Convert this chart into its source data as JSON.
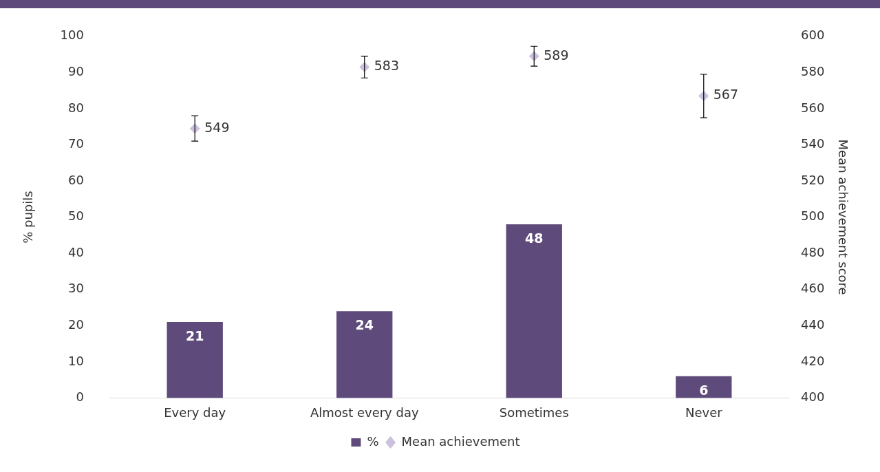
{
  "chart_data": {
    "type": "bar",
    "categories": [
      "Every day",
      "Almost every day",
      "Sometimes",
      "Never"
    ],
    "ylabel": "% pupils",
    "y2label": "Mean achievement score",
    "ylim": [
      0,
      100
    ],
    "yticks": [
      0,
      10,
      20,
      30,
      40,
      50,
      60,
      70,
      80,
      90,
      100
    ],
    "y2lim": [
      400,
      600
    ],
    "y2ticks": [
      400,
      420,
      440,
      460,
      480,
      500,
      520,
      540,
      560,
      580,
      600
    ],
    "series": [
      {
        "name": "%",
        "color": "#5f4b7b",
        "values": [
          21,
          24,
          48,
          6
        ]
      },
      {
        "name": "Mean achievement",
        "type": "scatter",
        "axis": "y2",
        "color": "#cbc0dd",
        "marker": "diamond",
        "values": [
          549,
          583,
          589,
          567
        ],
        "errors": [
          7,
          6,
          5.5,
          12
        ]
      }
    ],
    "data_labels": true,
    "grid": false,
    "legend": "bottom"
  }
}
